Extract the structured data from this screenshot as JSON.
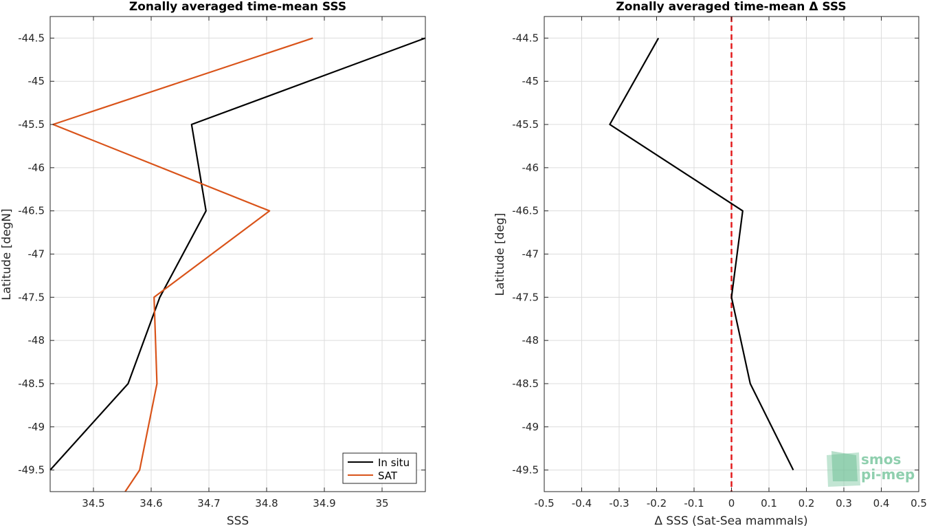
{
  "chart_data": [
    {
      "type": "line",
      "title": "Zonally averaged time-mean SSS",
      "xlabel": "SSS",
      "ylabel": "Latitude [degN]",
      "xlim": [
        34.425,
        35.075
      ],
      "ylim": [
        -49.75,
        -44.25
      ],
      "xticks": [
        34.5,
        34.6,
        34.7,
        34.8,
        34.9,
        35.0
      ],
      "xtick_labels": [
        "34.5",
        "34.6",
        "34.7",
        "34.8",
        "34.9",
        "35"
      ],
      "yticks": [
        -44.5,
        -45,
        -45.5,
        -46,
        -46.5,
        -47,
        -47.5,
        -48,
        -48.5,
        -49,
        -49.5
      ],
      "ytick_labels": [
        "-44.5",
        "-45",
        "-45.5",
        "-46",
        "-46.5",
        "-47",
        "-47.5",
        "-48",
        "-48.5",
        "-49",
        "-49.5"
      ],
      "grid": true,
      "legend_position": "bottom-right",
      "series": [
        {
          "name": "In situ",
          "color": "#000000",
          "points": [
            {
              "x": 35.075,
              "y": -44.5
            },
            {
              "x": 34.67,
              "y": -45.5
            },
            {
              "x": 34.695,
              "y": -46.5
            },
            {
              "x": 34.615,
              "y": -47.5
            },
            {
              "x": 34.56,
              "y": -48.5
            },
            {
              "x": 34.425,
              "y": -49.5
            }
          ]
        },
        {
          "name": "SAT",
          "color": "#d95319",
          "points": [
            {
              "x": 34.88,
              "y": -44.5
            },
            {
              "x": 34.43,
              "y": -45.5
            },
            {
              "x": 34.805,
              "y": -46.5
            },
            {
              "x": 34.605,
              "y": -47.5
            },
            {
              "x": 34.61,
              "y": -48.5
            },
            {
              "x": 34.58,
              "y": -49.5
            },
            {
              "x": 34.555,
              "y": -49.75
            }
          ]
        }
      ]
    },
    {
      "type": "line",
      "title": "Zonally averaged time-mean Δ SSS",
      "xlabel": "Δ SSS (Sat-Sea mammals)",
      "ylabel": "Latitude [deg]",
      "xlim": [
        -0.5,
        0.5
      ],
      "ylim": [
        -49.75,
        -44.25
      ],
      "xticks": [
        -0.5,
        -0.4,
        -0.3,
        -0.2,
        -0.1,
        0,
        0.1,
        0.2,
        0.3,
        0.4,
        0.5
      ],
      "xtick_labels": [
        "-0.5",
        "-0.4",
        "-0.3",
        "-0.2",
        "-0.1",
        "0",
        "0.1",
        "0.2",
        "0.3",
        "0.4",
        "0.5"
      ],
      "yticks": [
        -44.5,
        -45,
        -45.5,
        -46,
        -46.5,
        -47,
        -47.5,
        -48,
        -48.5,
        -49,
        -49.5
      ],
      "ytick_labels": [
        "-44.5",
        "-45",
        "-45.5",
        "-46",
        "-46.5",
        "-47",
        "-47.5",
        "-48",
        "-48.5",
        "-49",
        "-49.5"
      ],
      "grid": true,
      "reference_line": {
        "x": 0,
        "color": "#e31a1c",
        "style": "dashed"
      },
      "series": [
        {
          "color": "#000000",
          "points": [
            {
              "x": -0.195,
              "y": -44.5
            },
            {
              "x": -0.325,
              "y": -45.5
            },
            {
              "x": 0.03,
              "y": -46.5
            },
            {
              "x": 0.0,
              "y": -47.5
            },
            {
              "x": 0.05,
              "y": -48.5
            },
            {
              "x": 0.165,
              "y": -49.5
            }
          ]
        }
      ]
    }
  ],
  "logo": {
    "line1": "smos",
    "line2": "pi-mep"
  }
}
